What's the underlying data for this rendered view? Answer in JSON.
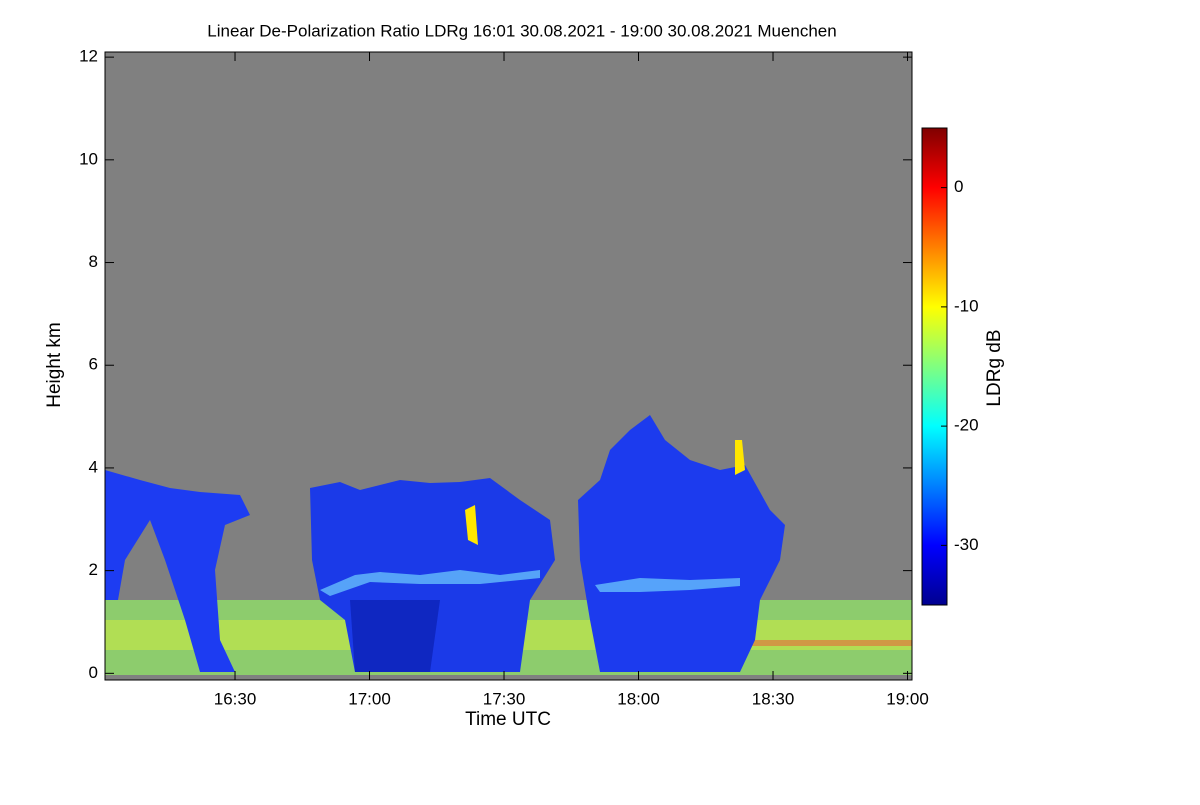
{
  "chart_data": {
    "type": "heatmap",
    "title": "Linear De-Polarization Ratio LDRg   16:01 30.08.2021 - 19:00 30.08.2021 Muenchen",
    "x_label": "Time UTC",
    "y_label": "Height km",
    "colorbar_label": "LDRg dB",
    "xlim": [
      961,
      1141
    ],
    "xticks": [
      {
        "value": 990,
        "label": "16:30"
      },
      {
        "value": 1020,
        "label": "17:00"
      },
      {
        "value": 1050,
        "label": "17:30"
      },
      {
        "value": 1080,
        "label": "18:00"
      },
      {
        "value": 1110,
        "label": "18:30"
      },
      {
        "value": 1140,
        "label": "19:00"
      }
    ],
    "ylim": [
      -0.13,
      12.1
    ],
    "yticks": [
      0,
      2,
      4,
      6,
      8,
      10,
      12
    ],
    "clim": [
      -35,
      5
    ],
    "cticks": [
      0,
      -10,
      -20,
      -30
    ],
    "colormap": [
      "#00008f",
      "#0000ff",
      "#0080ff",
      "#00ffff",
      "#80ff80",
      "#ffff00",
      "#ff8000",
      "#ff0000",
      "#800000"
    ],
    "background": "#808080"
  }
}
